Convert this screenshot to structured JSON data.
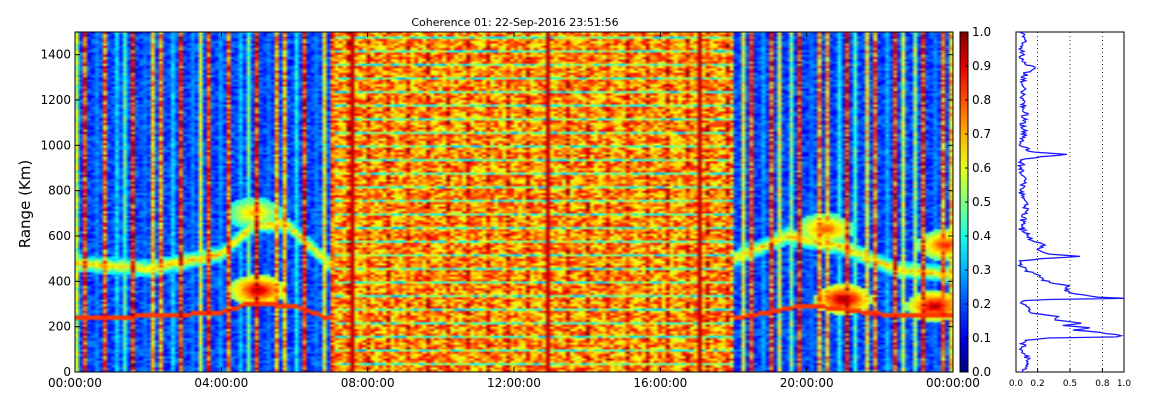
{
  "chart_data": [
    {
      "type": "heatmap",
      "title": "Coherence 01: 22-Sep-2016 23:51:56",
      "ylabel": "Range (Km)",
      "xlabel": "",
      "x_tick_labels": [
        "00:00:00",
        "04:00:00",
        "08:00:00",
        "12:00:00",
        "16:00:00",
        "20:00:00",
        "00:00:00"
      ],
      "x_ticks_hours": [
        0,
        4,
        8,
        12,
        16,
        20,
        24
      ],
      "xlim_hours": [
        0,
        24
      ],
      "y_ticks": [
        0,
        200,
        400,
        600,
        800,
        1000,
        1200,
        1400
      ],
      "ylim": [
        0,
        1500
      ],
      "colormap": "jet",
      "color_range": [
        0.0,
        1.0
      ],
      "features": {
        "dense_block_hours": [
          7.1,
          18.0
        ],
        "stripe_period_hours": 0.26,
        "vertical_red_lines_hours": [
          7.6,
          12.9,
          17.1
        ],
        "lower_trace_km": [
          [
            0,
            235
          ],
          [
            4,
            260
          ],
          [
            4.8,
            305
          ],
          [
            6,
            290
          ],
          [
            7,
            235
          ],
          [
            12,
            235
          ],
          [
            18,
            235
          ],
          [
            20,
            295
          ],
          [
            22,
            255
          ],
          [
            24,
            245
          ]
        ],
        "upper_band_km": [
          [
            0,
            480
          ],
          [
            2,
            455
          ],
          [
            4,
            520
          ],
          [
            4.9,
            650
          ],
          [
            5.8,
            650
          ],
          [
            7,
            470
          ],
          [
            18,
            500
          ],
          [
            19.5,
            600
          ],
          [
            21,
            550
          ],
          [
            22.5,
            450
          ],
          [
            24,
            430
          ]
        ],
        "hot_blobs": [
          {
            "t": 5.0,
            "km": 360,
            "intensity": 0.95
          },
          {
            "t": 4.9,
            "km": 700,
            "intensity": 0.7
          },
          {
            "t": 21.0,
            "km": 320,
            "intensity": 0.98
          },
          {
            "t": 20.5,
            "km": 630,
            "intensity": 0.8
          },
          {
            "t": 23.5,
            "km": 290,
            "intensity": 0.95
          },
          {
            "t": 23.8,
            "km": 560,
            "intensity": 0.85
          }
        ]
      }
    },
    {
      "type": "bar",
      "name": "colorbar",
      "tick_labels": [
        "0.0",
        "0.1",
        "0.2",
        "0.3",
        "0.4",
        "0.5",
        "0.6",
        "0.7",
        "0.8",
        "0.9",
        "1.0"
      ],
      "range": [
        0.0,
        1.0
      ]
    },
    {
      "type": "line",
      "name": "range profile",
      "x_tick_labels": [
        "0.0",
        "0.2",
        "0.5",
        "0.8",
        "1.0"
      ],
      "x_ticks": [
        0.0,
        0.2,
        0.5,
        0.8,
        1.0
      ],
      "xlim": [
        0.0,
        1.0
      ],
      "ylim": [
        0,
        1500
      ],
      "profile_points": [
        [
          0,
          0.08
        ],
        [
          60,
          0.1
        ],
        [
          100,
          0.06
        ],
        [
          140,
          0.08
        ],
        [
          150,
          0.3
        ],
        [
          155,
          0.95
        ],
        [
          160,
          1.0
        ],
        [
          170,
          0.85
        ],
        [
          185,
          0.55
        ],
        [
          195,
          0.7
        ],
        [
          205,
          0.45
        ],
        [
          215,
          0.6
        ],
        [
          230,
          0.35
        ],
        [
          245,
          0.4
        ],
        [
          260,
          0.15
        ],
        [
          280,
          0.12
        ],
        [
          300,
          0.06
        ],
        [
          315,
          0.05
        ],
        [
          322,
          0.4
        ],
        [
          325,
          1.0
        ],
        [
          332,
          0.7
        ],
        [
          345,
          0.55
        ],
        [
          360,
          0.45
        ],
        [
          380,
          0.5
        ],
        [
          395,
          0.3
        ],
        [
          410,
          0.25
        ],
        [
          430,
          0.2
        ],
        [
          450,
          0.08
        ],
        [
          470,
          0.05
        ],
        [
          490,
          0.06
        ],
        [
          500,
          0.25
        ],
        [
          510,
          0.6
        ],
        [
          520,
          0.3
        ],
        [
          540,
          0.2
        ],
        [
          560,
          0.25
        ],
        [
          580,
          0.15
        ],
        [
          600,
          0.12
        ],
        [
          630,
          0.05
        ],
        [
          680,
          0.07
        ],
        [
          720,
          0.1
        ],
        [
          760,
          0.06
        ],
        [
          800,
          0.05
        ],
        [
          850,
          0.08
        ],
        [
          900,
          0.05
        ],
        [
          940,
          0.06
        ],
        [
          960,
          0.45
        ],
        [
          970,
          0.15
        ],
        [
          1000,
          0.05
        ],
        [
          1050,
          0.08
        ],
        [
          1100,
          0.06
        ],
        [
          1150,
          0.09
        ],
        [
          1200,
          0.05
        ],
        [
          1260,
          0.07
        ],
        [
          1300,
          0.06
        ],
        [
          1330,
          0.12
        ],
        [
          1340,
          0.2
        ],
        [
          1360,
          0.06
        ],
        [
          1400,
          0.05
        ],
        [
          1450,
          0.07
        ],
        [
          1500,
          0.06
        ]
      ]
    }
  ]
}
